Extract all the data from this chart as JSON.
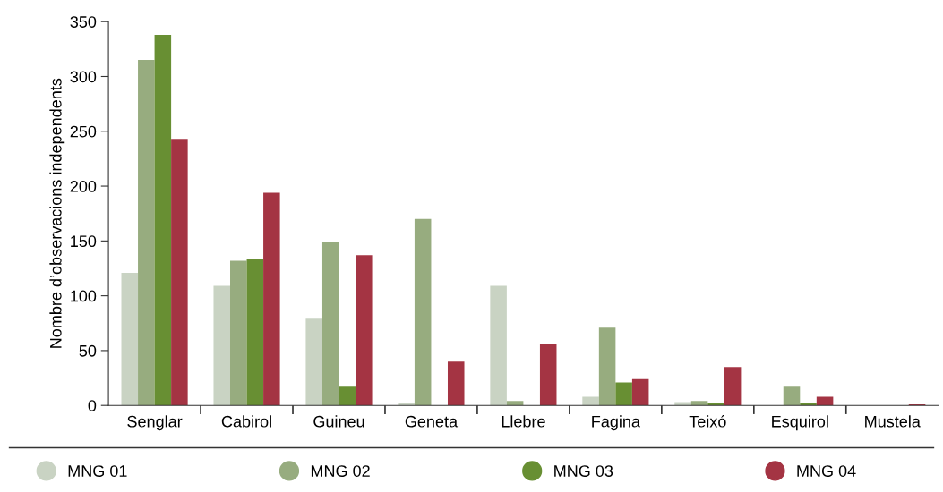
{
  "chart_data": {
    "type": "bar",
    "ylabel": "Nombre d’observacions independents",
    "categories": [
      "Senglar",
      "Cabirol",
      "Guineu",
      "Geneta",
      "Llebre",
      "Fagina",
      "Teixó",
      "Esquirol",
      "Mustela"
    ],
    "series": [
      {
        "name": "MNG 01",
        "color": "#c9d3c3",
        "values": [
          121,
          109,
          79,
          2,
          109,
          8,
          3,
          0,
          0
        ]
      },
      {
        "name": "MNG 02",
        "color": "#97ac7f",
        "values": [
          315,
          132,
          149,
          170,
          4,
          71,
          4,
          17,
          0
        ]
      },
      {
        "name": "MNG 03",
        "color": "#688f33",
        "values": [
          338,
          134,
          17,
          0,
          0,
          21,
          2,
          2,
          0
        ]
      },
      {
        "name": "MNG 04",
        "color": "#a43443",
        "values": [
          243,
          194,
          137,
          40,
          56,
          24,
          35,
          8,
          1
        ]
      }
    ],
    "ylim": [
      0,
      350
    ],
    "yticks": [
      0,
      50,
      100,
      150,
      200,
      250,
      300,
      350
    ],
    "grid": false,
    "legend": "bottom",
    "marker": "circle"
  }
}
